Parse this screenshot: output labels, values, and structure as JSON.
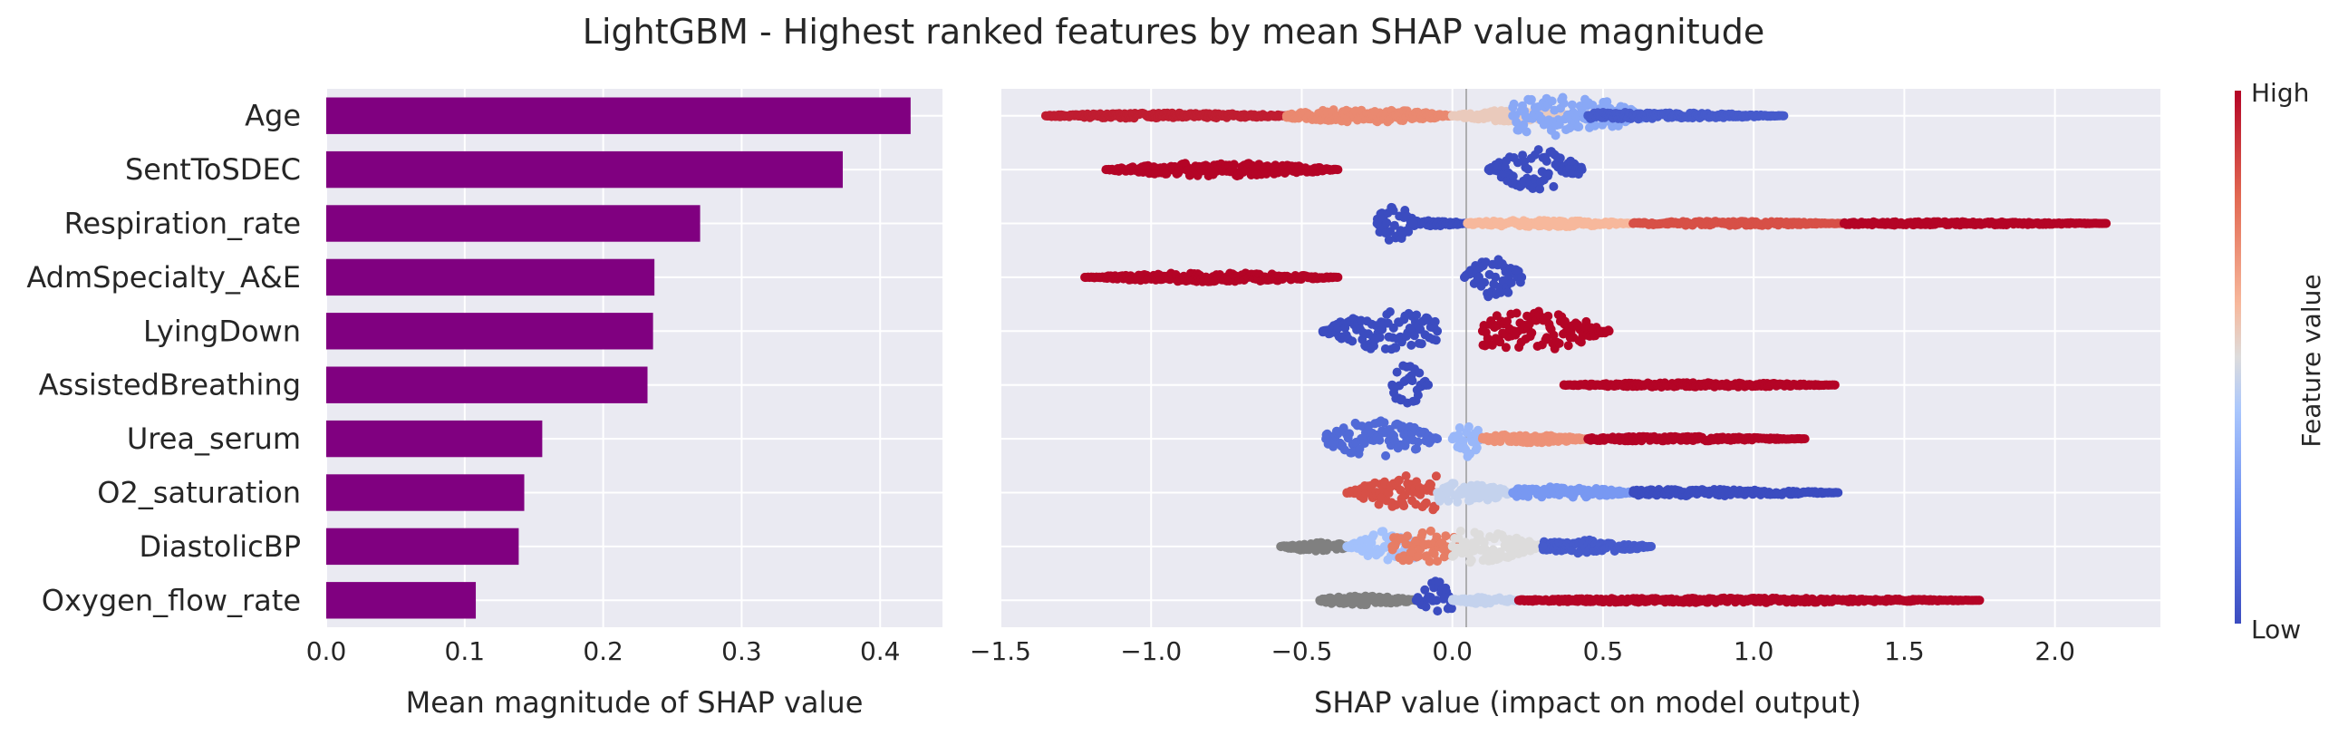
{
  "figure": {
    "title": "LightGBM - Highest ranked features by mean SHAP value magnitude"
  },
  "colors": {
    "bar": "#800080",
    "axes_bg": "#eaeaf2",
    "grid": "#ffffff",
    "missing": "#808080",
    "low": "#3b4cc0",
    "high": "#b40426"
  },
  "chart_data": [
    {
      "type": "bar",
      "orientation": "horizontal",
      "categories": [
        "Age",
        "SentToSDEC",
        "Respiration_rate",
        "AdmSpecialty_A&E",
        "LyingDown",
        "AssistedBreathing",
        "Urea_serum",
        "O2_saturation",
        "DiastolicBP",
        "Oxygen_flow_rate"
      ],
      "values": [
        0.422,
        0.373,
        0.27,
        0.237,
        0.236,
        0.232,
        0.156,
        0.143,
        0.139,
        0.108
      ],
      "xlabel": "Mean magnitude of SHAP value",
      "xlim": [
        0,
        0.445
      ],
      "xticks": [
        0.0,
        0.1,
        0.2,
        0.3,
        0.4
      ],
      "xtick_labels": [
        "0.0",
        "0.1",
        "0.2",
        "0.3",
        "0.4"
      ],
      "grid": true
    },
    {
      "type": "scatter",
      "subtype": "shap_beeswarm",
      "categories": [
        "Age",
        "SentToSDEC",
        "Respiration_rate",
        "AdmSpecialty_A&E",
        "LyingDown",
        "AssistedBreathing",
        "Urea_serum",
        "O2_saturation",
        "DiastolicBP",
        "Oxygen_flow_rate"
      ],
      "xlabel": "SHAP value (impact on model output)",
      "xlim": [
        -1.5,
        2.35
      ],
      "xticks": [
        -1.5,
        -1.0,
        -0.5,
        0.0,
        0.5,
        1.0,
        1.5,
        2.0
      ],
      "xtick_labels": [
        "−1.5",
        "−1.0",
        "−0.5",
        "0.0",
        "0.5",
        "1.0",
        "1.5",
        "2.0"
      ],
      "grid": true,
      "series": [
        {
          "segments": [
            {
              "x0": -1.35,
              "x1": -0.5,
              "center": -0.95,
              "value": 0.95,
              "spread": 0.12
            },
            {
              "x0": -0.55,
              "x1": 0.0,
              "center": -0.3,
              "value": 0.72,
              "spread": 0.3
            },
            {
              "x0": 0.0,
              "x1": 0.4,
              "center": 0.2,
              "value": 0.55,
              "spread": 0.25
            },
            {
              "x0": 0.2,
              "x1": 0.65,
              "center": 0.36,
              "value": 0.3,
              "spread": 0.9
            },
            {
              "x0": 0.45,
              "x1": 1.1,
              "center": 0.55,
              "value": 0.05,
              "spread": 0.15
            }
          ]
        },
        {
          "segments": [
            {
              "x0": -1.15,
              "x1": -0.38,
              "center": -0.77,
              "value": 1.0,
              "spread": 0.3
            },
            {
              "x0": 0.12,
              "x1": 0.43,
              "center": 0.28,
              "value": 0.0,
              "spread": 0.9
            }
          ]
        },
        {
          "segments": [
            {
              "x0": -0.25,
              "x1": -0.12,
              "center": -0.19,
              "value": 0.0,
              "spread": 0.9
            },
            {
              "x0": -0.13,
              "x1": 0.05,
              "center": -0.08,
              "value": 0.0,
              "spread": 0.12
            },
            {
              "x0": 0.05,
              "x1": 0.6,
              "center": 0.3,
              "value": 0.6,
              "spread": 0.15
            },
            {
              "x0": 0.6,
              "x1": 1.3,
              "center": 0.9,
              "value": 0.85,
              "spread": 0.1
            },
            {
              "x0": 1.3,
              "x1": 2.17,
              "center": 1.6,
              "value": 1.0,
              "spread": 0.08
            }
          ]
        },
        {
          "segments": [
            {
              "x0": -1.22,
              "x1": -0.38,
              "center": -0.8,
              "value": 1.0,
              "spread": 0.2
            },
            {
              "x0": 0.04,
              "x1": 0.23,
              "center": 0.14,
              "value": 0.0,
              "spread": 0.9
            }
          ]
        },
        {
          "segments": [
            {
              "x0": -0.43,
              "x1": -0.05,
              "center": -0.21,
              "value": 0.0,
              "spread": 0.9
            },
            {
              "x0": 0.1,
              "x1": 0.52,
              "center": 0.25,
              "value": 1.0,
              "spread": 0.9
            }
          ]
        },
        {
          "segments": [
            {
              "x0": -0.2,
              "x1": -0.08,
              "center": -0.15,
              "value": 0.0,
              "spread": 0.9
            },
            {
              "x0": 0.37,
              "x1": 1.27,
              "center": 0.8,
              "value": 1.0,
              "spread": 0.1
            }
          ]
        },
        {
          "segments": [
            {
              "x0": -0.42,
              "x1": -0.05,
              "center": -0.25,
              "value": 0.1,
              "spread": 0.8
            },
            {
              "x0": 0.0,
              "x1": 0.1,
              "center": 0.05,
              "value": 0.35,
              "spread": 0.8
            },
            {
              "x0": 0.1,
              "x1": 0.45,
              "center": 0.25,
              "value": 0.7,
              "spread": 0.2
            },
            {
              "x0": 0.45,
              "x1": 1.17,
              "center": 0.7,
              "value": 1.0,
              "spread": 0.1
            }
          ]
        },
        {
          "segments": [
            {
              "x0": -0.35,
              "x1": -0.05,
              "center": -0.1,
              "value": 0.85,
              "spread": 0.8
            },
            {
              "x0": -0.05,
              "x1": 0.2,
              "center": 0.0,
              "value": 0.45,
              "spread": 0.5
            },
            {
              "x0": 0.2,
              "x1": 0.6,
              "center": 0.35,
              "value": 0.25,
              "spread": 0.25
            },
            {
              "x0": 0.6,
              "x1": 1.28,
              "center": 0.8,
              "value": 0.0,
              "spread": 0.15
            }
          ]
        },
        {
          "segments": [
            {
              "x0": -0.57,
              "x1": -0.35,
              "center": -0.45,
              "value": null,
              "spread": 0.2
            },
            {
              "x0": -0.35,
              "x1": -0.12,
              "center": -0.2,
              "value": 0.38,
              "spread": 0.7
            },
            {
              "x0": -0.2,
              "x1": 0.05,
              "center": -0.1,
              "value": 0.75,
              "spread": 0.8
            },
            {
              "x0": 0.0,
              "x1": 0.3,
              "center": 0.05,
              "value": 0.5,
              "spread": 0.7
            },
            {
              "x0": 0.3,
              "x1": 0.66,
              "center": 0.4,
              "value": 0.05,
              "spread": 0.3
            }
          ]
        },
        {
          "segments": [
            {
              "x0": -0.44,
              "x1": -0.12,
              "center": -0.3,
              "value": null,
              "spread": 0.2
            },
            {
              "x0": -0.12,
              "x1": 0.0,
              "center": -0.05,
              "value": 0.0,
              "spread": 0.9
            },
            {
              "x0": 0.0,
              "x1": 0.22,
              "center": 0.1,
              "value": 0.45,
              "spread": 0.15
            },
            {
              "x0": 0.22,
              "x1": 1.75,
              "center": 0.9,
              "value": 1.0,
              "spread": 0.1
            }
          ]
        }
      ]
    }
  ],
  "colorbar": {
    "label": "Feature value",
    "high_label": "High",
    "low_label": "Low"
  }
}
